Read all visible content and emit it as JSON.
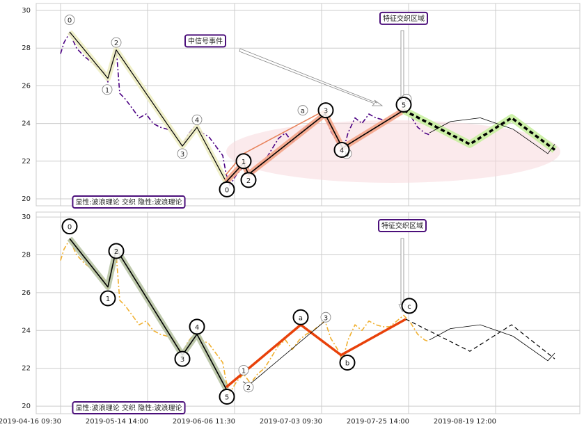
{
  "chart_data": [
    {
      "type": "line",
      "xlim": [
        -35,
        746
      ],
      "ylim": [
        19.63,
        30.37
      ],
      "yticks": [
        20,
        22,
        24,
        26,
        28,
        30
      ],
      "grid": true,
      "series": [
        {
          "color": "#4b0082",
          "style": "dashdot",
          "weight": "normal",
          "x": [
            0,
            5,
            13,
            23,
            33,
            43,
            53,
            63,
            68,
            73,
            80,
            85,
            93,
            103,
            113,
            123,
            133,
            143,
            153,
            163,
            175,
            183,
            196,
            203,
            213,
            223,
            233,
            238,
            243,
            253,
            263,
            273,
            283,
            293,
            303,
            313,
            323,
            333,
            343,
            353,
            363,
            373,
            380,
            388,
            398,
            405,
            413,
            423,
            433,
            443,
            453,
            463,
            473,
            483,
            493,
            503,
            513,
            523,
            530
          ],
          "values": [
            27.7,
            28.3,
            28.8,
            28.0,
            27.6,
            27.3,
            27.0,
            26.7,
            26.2,
            27.2,
            28.0,
            25.6,
            25.3,
            24.8,
            24.3,
            24.5,
            24.0,
            23.8,
            23.7,
            23.5,
            22.8,
            23.4,
            24.0,
            23.5,
            23.3,
            22.8,
            22.3,
            21.3,
            20.7,
            21.3,
            21.7,
            21.2,
            21.7,
            22.0,
            22.6,
            23.2,
            23.5,
            23.0,
            23.5,
            23.8,
            24.0,
            24.3,
            24.5,
            23.6,
            23.0,
            22.4,
            23.5,
            24.3,
            24.0,
            24.5,
            24.3,
            24.2,
            24.2,
            24.5,
            24.8,
            24.4,
            23.8,
            23.5,
            23.4
          ]
        },
        {
          "color": "#000000",
          "style": "solid",
          "weight": "thin",
          "band": "#eeeec4",
          "x": [
            13,
            68,
            80,
            175,
            196,
            238
          ],
          "values": [
            28.86,
            26.4,
            27.9,
            22.8,
            23.8,
            20.9
          ]
        },
        {
          "color": "#000000",
          "style": "solid",
          "weight": "normal",
          "band": "#f4a58a",
          "x": [
            238,
            263,
            270,
            380,
            405,
            493
          ],
          "values": [
            20.9,
            21.9,
            21.3,
            24.5,
            22.7,
            24.7
          ]
        },
        {
          "color": "#e8825a",
          "style": "solid",
          "weight": "normal",
          "x": [
            238,
            263,
            380
          ],
          "values": [
            21.3,
            22.4,
            24.7
          ]
        },
        {
          "color": "#000000",
          "style": "dashed",
          "weight": "heavy",
          "band": "#c8f0a0",
          "x": [
            493,
            588,
            648,
            710
          ],
          "values": [
            24.7,
            22.9,
            24.3,
            22.6
          ]
        },
        {
          "color": "#000000",
          "style": "solid",
          "weight": "hair",
          "x": [
            530,
            560,
            603,
            650,
            700,
            710
          ],
          "values": [
            23.5,
            24.1,
            24.3,
            23.7,
            22.4,
            22.9
          ]
        }
      ],
      "labels": [
        {
          "text": "0",
          "x": 13,
          "y": 29.5,
          "size": "small"
        },
        {
          "text": "1",
          "x": 67,
          "y": 25.8,
          "size": "small"
        },
        {
          "text": "2",
          "x": 80,
          "y": 28.3,
          "size": "small"
        },
        {
          "text": "3",
          "x": 175,
          "y": 22.4,
          "size": "small"
        },
        {
          "text": "4",
          "x": 196,
          "y": 24.2,
          "size": "small"
        },
        {
          "text": "a",
          "x": 348,
          "y": 24.7,
          "size": "small"
        },
        {
          "text": "b",
          "x": 411,
          "y": 22.4,
          "size": "small"
        },
        {
          "text": "c",
          "x": 497,
          "y": 25.3,
          "size": "small"
        },
        {
          "text": "0",
          "x": 239,
          "y": 20.5,
          "size": "big"
        },
        {
          "text": "1",
          "x": 263,
          "y": 22.0,
          "size": "big"
        },
        {
          "text": "2",
          "x": 270,
          "y": 21.0,
          "size": "big"
        },
        {
          "text": "3",
          "x": 381,
          "y": 24.7,
          "size": "big"
        },
        {
          "text": "4",
          "x": 404,
          "y": 22.6,
          "size": "big"
        },
        {
          "text": "5",
          "x": 493,
          "y": 25.0,
          "size": "big"
        }
      ],
      "annotations": [
        {
          "text": "中信号事件",
          "color": "#c0392b",
          "x": 208,
          "y": 28.4
        },
        {
          "text": "特征交织区域",
          "color": "#1a7fb0",
          "x": 493,
          "y": 29.6
        },
        {
          "text": "显性:波浪理论 交织 隐性:波浪理论",
          "color": "#1a7fb0",
          "x": 98,
          "y": 19.85
        }
      ]
    },
    {
      "type": "line",
      "xlim": [
        -35,
        746
      ],
      "ylim": [
        19.6,
        30.26
      ],
      "yticks": [
        20,
        22,
        24,
        26,
        28,
        30
      ],
      "grid": true,
      "xticks": [
        {
          "value": 0,
          "label": "2019-04-16 09:30"
        },
        {
          "value": 125,
          "label": "2019-05-14 14:00"
        },
        {
          "value": 250,
          "label": "2019-06-06 11:30"
        },
        {
          "value": 375,
          "label": "2019-07-03 09:30"
        },
        {
          "value": 500,
          "label": "2019-07-25 14:00"
        },
        {
          "value": 625,
          "label": "2019-08-19 12:00"
        }
      ],
      "series": [
        {
          "color": "#f0b030",
          "style": "dashdot",
          "weight": "normal",
          "x": [
            0,
            5,
            13,
            23,
            33,
            43,
            53,
            63,
            68,
            73,
            80,
            85,
            93,
            103,
            113,
            123,
            133,
            143,
            153,
            163,
            175,
            183,
            196,
            203,
            213,
            223,
            233,
            238,
            243,
            253,
            263,
            273,
            283,
            293,
            303,
            313,
            323,
            333,
            343,
            353,
            363,
            373,
            380,
            388,
            398,
            405,
            413,
            423,
            433,
            443,
            453,
            463,
            473,
            483,
            493,
            503,
            513,
            523,
            530
          ],
          "values": [
            27.7,
            28.3,
            28.8,
            28.0,
            27.6,
            27.3,
            27.0,
            26.7,
            26.2,
            27.2,
            28.0,
            25.6,
            25.3,
            24.8,
            24.3,
            24.5,
            24.0,
            23.8,
            23.7,
            23.5,
            22.8,
            23.4,
            24.0,
            23.5,
            23.3,
            22.8,
            22.3,
            21.3,
            20.7,
            21.3,
            21.7,
            21.2,
            21.7,
            22.0,
            22.6,
            23.2,
            23.5,
            23.0,
            23.5,
            23.8,
            24.0,
            24.3,
            24.5,
            23.6,
            23.0,
            22.4,
            23.5,
            24.3,
            24.0,
            24.5,
            24.3,
            24.2,
            24.2,
            24.5,
            24.8,
            24.4,
            23.8,
            23.5,
            23.4
          ]
        },
        {
          "color": "#000000",
          "style": "solid",
          "weight": "normal",
          "band": "#b8c4a4",
          "x": [
            13,
            68,
            80,
            175,
            196,
            238
          ],
          "values": [
            28.86,
            26.3,
            28.3,
            22.7,
            23.8,
            20.9
          ]
        },
        {
          "color": "#e8410a",
          "style": "solid",
          "weight": "heavy",
          "x": [
            238,
            345,
            403,
            496
          ],
          "values": [
            21.0,
            24.3,
            22.7,
            24.6
          ]
        },
        {
          "color": "#000000",
          "style": "solid",
          "weight": "hair",
          "x": [
            262,
            270,
            380
          ],
          "values": [
            21.3,
            21.1,
            24.5
          ]
        },
        {
          "color": "#000000",
          "style": "dashed",
          "weight": "thin",
          "x": [
            496,
            588,
            648,
            710
          ],
          "values": [
            24.6,
            22.9,
            24.3,
            22.5
          ]
        },
        {
          "color": "#000000",
          "style": "solid",
          "weight": "hair",
          "x": [
            530,
            560,
            603,
            650,
            700,
            710
          ],
          "values": [
            23.5,
            24.1,
            24.3,
            23.7,
            22.4,
            22.8
          ]
        }
      ],
      "labels": [
        {
          "text": "0",
          "x": 13,
          "y": 29.5,
          "size": "big"
        },
        {
          "text": "1",
          "x": 68,
          "y": 25.7,
          "size": "big"
        },
        {
          "text": "2",
          "x": 80,
          "y": 28.2,
          "size": "big"
        },
        {
          "text": "3",
          "x": 175,
          "y": 22.5,
          "size": "big"
        },
        {
          "text": "4",
          "x": 196,
          "y": 24.2,
          "size": "big"
        },
        {
          "text": "5",
          "x": 239,
          "y": 20.5,
          "size": "big"
        },
        {
          "text": "a",
          "x": 345,
          "y": 24.7,
          "size": "big"
        },
        {
          "text": "b",
          "x": 412,
          "y": 22.3,
          "size": "big"
        },
        {
          "text": "c",
          "x": 501,
          "y": 25.3,
          "size": "big"
        },
        {
          "text": "1",
          "x": 263,
          "y": 21.9,
          "size": "small"
        },
        {
          "text": "2",
          "x": 270,
          "y": 21.0,
          "size": "small"
        },
        {
          "text": "3",
          "x": 381,
          "y": 24.7,
          "size": "small"
        }
      ],
      "annotations": [
        {
          "text": "特征交织区域",
          "color": "#1a7fb0",
          "x": 491,
          "y": 29.56
        },
        {
          "text": "显性:波浪理论 交织 隐性:波浪理论",
          "color": "#1a7fb0",
          "x": 98,
          "y": 19.93
        }
      ]
    }
  ]
}
